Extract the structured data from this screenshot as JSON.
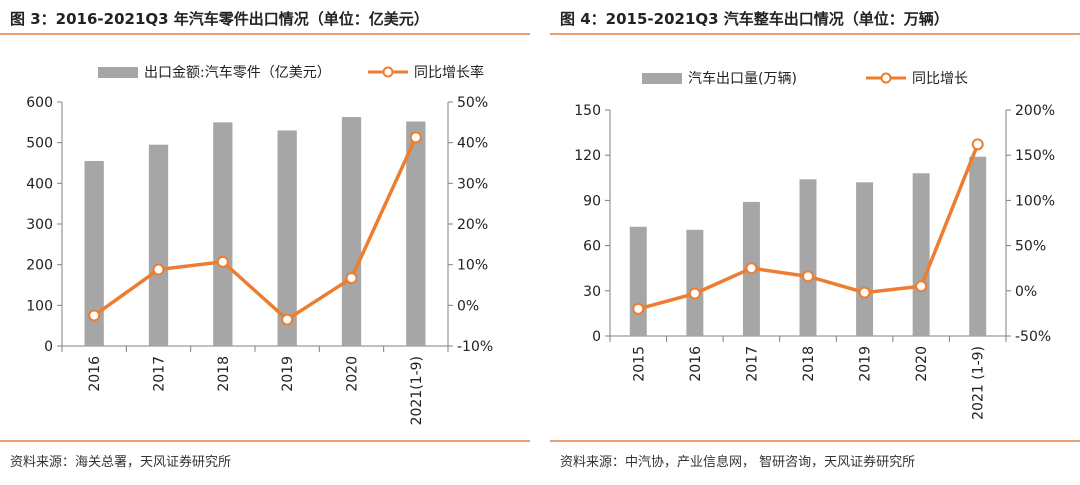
{
  "colors": {
    "bar": "#a6a6a6",
    "line": "#ed7d31",
    "accent": "#e8a070",
    "axis": "#808080"
  },
  "left": {
    "title": "图 3：2016-2021Q3 年汽车零件出口情况（单位：亿美元）",
    "source": "资料来源：海关总署，天风证券研究所",
    "chart_data": {
      "type": "bar",
      "categories": [
        "2016",
        "2017",
        "2018",
        "2019",
        "2020",
        "2021(1-9)"
      ],
      "series": [
        {
          "name": "出口金额:汽车零件（亿美元）",
          "type": "bar",
          "axis": "left",
          "values": [
            455,
            495,
            550,
            530,
            563,
            552
          ]
        },
        {
          "name": "同比增长率",
          "type": "line",
          "axis": "right",
          "values": [
            -2.5,
            8.8,
            10.7,
            -3.5,
            6.7,
            41.3
          ]
        }
      ],
      "y_left": {
        "min": 0,
        "max": 600,
        "ticks": [
          "0",
          "100",
          "200",
          "300",
          "400",
          "500",
          "600"
        ]
      },
      "y_right": {
        "min": -10,
        "max": 50,
        "ticks": [
          "-10%",
          "0%",
          "10%",
          "20%",
          "30%",
          "40%",
          "50%"
        ]
      },
      "legend": "top-center"
    }
  },
  "right": {
    "title": "图 4：2015-2021Q3 汽车整车出口情况（单位：万辆）",
    "source": "资料来源：中汽协，产业信息网， 智研咨询，天风证券研究所",
    "chart_data": {
      "type": "bar",
      "categories": [
        "2015",
        "2016",
        "2017",
        "2018",
        "2019",
        "2020",
        "2021 (1-9)"
      ],
      "series": [
        {
          "name": "汽车出口量(万辆)",
          "type": "bar",
          "axis": "left",
          "values": [
            72.5,
            70.5,
            89,
            104,
            102,
            108,
            119
          ]
        },
        {
          "name": "同比增长",
          "type": "line",
          "axis": "right",
          "values": [
            -20,
            -3,
            25,
            16,
            -2,
            5,
            162
          ]
        }
      ],
      "y_left": {
        "min": 0,
        "max": 150,
        "ticks": [
          "0",
          "30",
          "60",
          "90",
          "120",
          "150"
        ]
      },
      "y_right": {
        "min": -50,
        "max": 200,
        "ticks": [
          "-50%",
          "0%",
          "50%",
          "100%",
          "150%",
          "200%"
        ]
      },
      "legend": "top-center"
    }
  }
}
